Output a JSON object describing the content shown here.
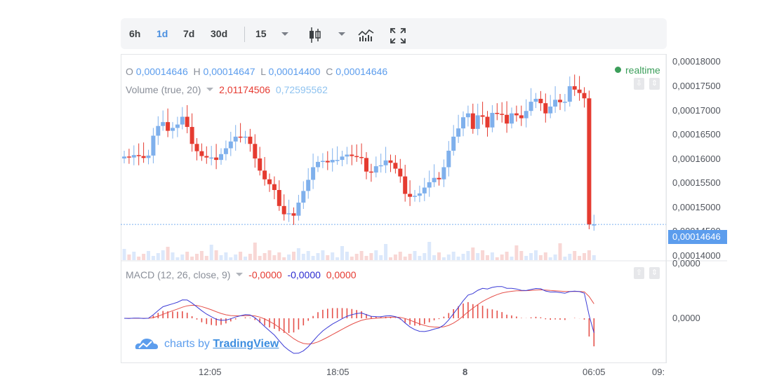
{
  "toolbar": {
    "ranges": [
      {
        "label": "6h",
        "active": false
      },
      {
        "label": "1d",
        "active": true
      },
      {
        "label": "7d",
        "active": false
      },
      {
        "label": "30d",
        "active": false
      }
    ],
    "interval": "15",
    "icons": [
      "candlestick-icon",
      "indicators-icon",
      "fullscreen-icon"
    ]
  },
  "ohlc": {
    "o_label": "O",
    "o": "0,00014646",
    "h_label": "H",
    "h": "0,00014647",
    "l_label": "L",
    "l": "0,00014400",
    "c_label": "C",
    "c": "0,00014646"
  },
  "volume": {
    "label": "Volume (true, 20)",
    "v1": "2,01174506",
    "v2": "0,72595562"
  },
  "macd": {
    "label": "MACD (12, 26, close, 9)",
    "v1": "-0,0000",
    "v2": "-0,0000",
    "v3": "0,0000"
  },
  "status": "realtime",
  "watermark": {
    "prefix": "charts by",
    "brand": "TradingView"
  },
  "current_price": "0,00014646",
  "colors": {
    "up": "#7fb0ec",
    "down": "#e53b30",
    "macd_line": "#3b3bd6",
    "signal_line": "#e5504a",
    "accent": "#5c9ded"
  },
  "chart_data": {
    "type": "candlestick",
    "price_axis": {
      "ticks": [
        "0,00018000",
        "0,00017500",
        "0,00017000",
        "0,00016500",
        "0,00016000",
        "0,00015500",
        "0,00015000",
        "0,00014500",
        "0,00014000"
      ],
      "range": [
        0.000139,
        0.0001815
      ]
    },
    "macd_axis": {
      "ticks": [
        "0,0000",
        "0,0000"
      ]
    },
    "time_axis": {
      "ticks": [
        "12:05",
        "18:05",
        "8",
        "06:05",
        "09:"
      ]
    },
    "candles_close": [
      0.0001605,
      0.0001603,
      0.0001608,
      0.0001606,
      0.0001602,
      0.0001607,
      0.0001648,
      0.0001668,
      0.0001676,
      0.0001658,
      0.0001664,
      0.0001671,
      0.0001687,
      0.0001666,
      0.0001631,
      0.0001616,
      0.0001606,
      0.0001603,
      0.0001603,
      0.0001598,
      0.000161,
      0.0001622,
      0.0001636,
      0.0001646,
      0.0001644,
      0.0001646,
      0.0001631,
      0.0001601,
      0.0001576,
      0.0001558,
      0.0001548,
      0.0001536,
      0.0001503,
      0.0001486,
      0.0001488,
      0.0001483,
      0.000151,
      0.0001534,
      0.0001557,
      0.0001583,
      0.0001594,
      0.0001596,
      0.0001593,
      0.0001598,
      0.0001598,
      0.0001605,
      0.0001609,
      0.0001606,
      0.0001604,
      0.0001602,
      0.0001574,
      0.0001572,
      0.0001585,
      0.0001587,
      0.0001597,
      0.0001592,
      0.000158,
      0.0001564,
      0.0001528,
      0.0001522,
      0.0001524,
      0.0001529,
      0.0001541,
      0.0001552,
      0.0001561,
      0.0001558,
      0.0001583,
      0.0001617,
      0.0001646,
      0.0001663,
      0.0001686,
      0.0001694,
      0.0001662,
      0.000169,
      0.0001687,
      0.0001665,
      0.0001695,
      0.0001693,
      0.0001691,
      0.0001673,
      0.0001694,
      0.000169,
      0.0001684,
      0.0001699,
      0.0001718,
      0.0001724,
      0.0001715,
      0.0001694,
      0.0001708,
      0.0001722,
      0.0001717,
      0.0001718,
      0.000175,
      0.0001743,
      0.0001736,
      0.0001725,
      0.0001465,
      0.0001465
    ]
  }
}
